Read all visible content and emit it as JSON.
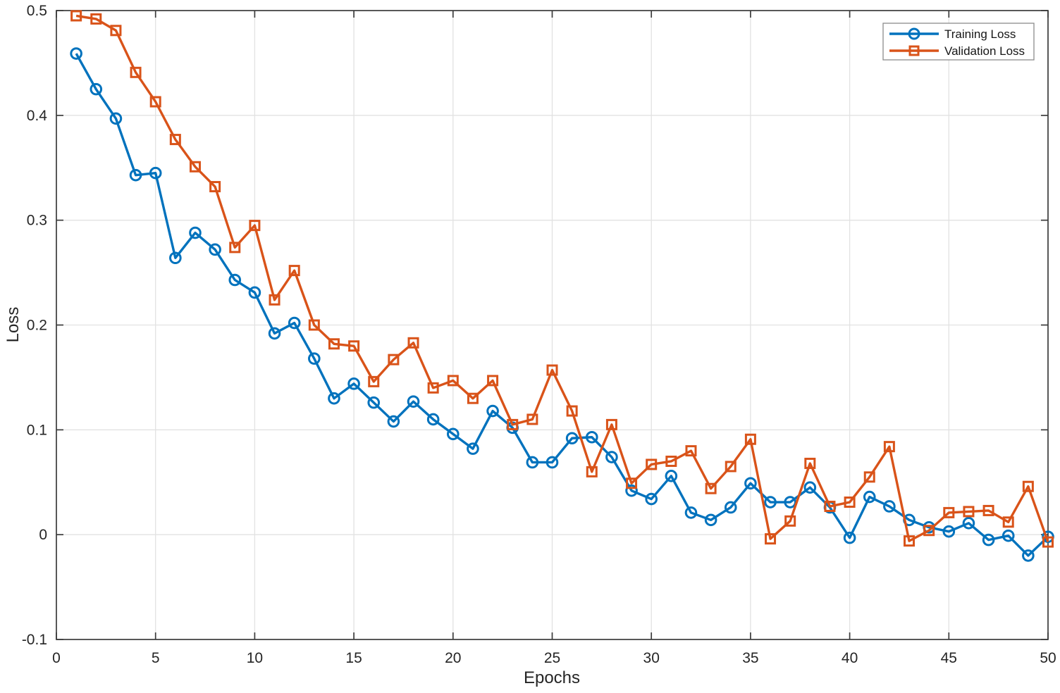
{
  "chart_data": {
    "type": "line",
    "title": "",
    "xlabel": "Epochs",
    "ylabel": "Loss",
    "xlim": [
      0,
      50
    ],
    "ylim": [
      -0.1,
      0.5
    ],
    "xticks": [
      0,
      5,
      10,
      15,
      20,
      25,
      30,
      35,
      40,
      45,
      50
    ],
    "xtick_labels": [
      "0",
      "5",
      "10",
      "15",
      "20",
      "25",
      "30",
      "35",
      "40",
      "45",
      "50"
    ],
    "yticks": [
      -0.1,
      0,
      0.1,
      0.2,
      0.3,
      0.4,
      0.5
    ],
    "ytick_labels": [
      "-0.1",
      "0",
      "0.1",
      "0.2",
      "0.3",
      "0.4",
      "0.5"
    ],
    "grid": true,
    "box": true,
    "legend_position": "top-right",
    "x": [
      1,
      2,
      3,
      4,
      5,
      6,
      7,
      8,
      9,
      10,
      11,
      12,
      13,
      14,
      15,
      16,
      17,
      18,
      19,
      20,
      21,
      22,
      23,
      24,
      25,
      26,
      27,
      28,
      29,
      30,
      31,
      32,
      33,
      34,
      35,
      36,
      37,
      38,
      39,
      40,
      41,
      42,
      43,
      44,
      45,
      46,
      47,
      48,
      49,
      50
    ],
    "series": [
      {
        "name": "Training Loss",
        "marker": "circle",
        "color": "#0072BD",
        "values": [
          0.459,
          0.425,
          0.397,
          0.343,
          0.345,
          0.264,
          0.288,
          0.272,
          0.243,
          0.231,
          0.192,
          0.202,
          0.168,
          0.13,
          0.144,
          0.126,
          0.108,
          0.127,
          0.11,
          0.096,
          0.082,
          0.118,
          0.102,
          0.069,
          0.069,
          0.092,
          0.093,
          0.074,
          0.042,
          0.034,
          0.056,
          0.021,
          0.014,
          0.026,
          0.049,
          0.031,
          0.031,
          0.045,
          0.026,
          -0.003,
          0.036,
          0.027,
          0.014,
          0.007,
          0.003,
          0.011,
          -0.005,
          -0.001,
          -0.02,
          -0.002
        ]
      },
      {
        "name": "Validation Loss",
        "marker": "square",
        "color": "#D95319",
        "values": [
          0.495,
          0.492,
          0.481,
          0.441,
          0.413,
          0.377,
          0.351,
          0.332,
          0.274,
          0.295,
          0.224,
          0.252,
          0.2,
          0.182,
          0.18,
          0.146,
          0.167,
          0.183,
          0.14,
          0.147,
          0.13,
          0.147,
          0.105,
          0.11,
          0.157,
          0.118,
          0.06,
          0.105,
          0.049,
          0.067,
          0.07,
          0.08,
          0.044,
          0.065,
          0.091,
          -0.004,
          0.013,
          0.068,
          0.027,
          0.031,
          0.055,
          0.084,
          -0.006,
          0.004,
          0.021,
          0.022,
          0.023,
          0.012,
          0.046,
          -0.007
        ]
      }
    ]
  },
  "colors": {
    "background": "#FFFFFF",
    "grid": "#E2E2E2",
    "frame": "#3C3C3C",
    "tick": "#3C3C3C",
    "text": "#252525",
    "legend_border": "#8C8C8C",
    "legend_background": "#FFFFFF"
  }
}
